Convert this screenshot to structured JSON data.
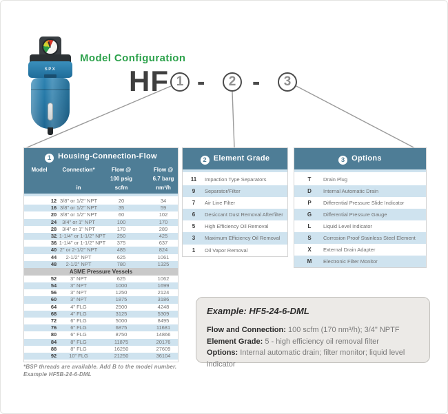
{
  "title": "Model Configuration",
  "product": {
    "brand": "SPX"
  },
  "model_code": {
    "prefix": "HF",
    "part1": "1",
    "sep1": "-",
    "part2": "2",
    "sep2": "-",
    "part3": "3"
  },
  "table1": {
    "badge": "1",
    "title": "Housing-Connection-Flow",
    "columns": {
      "model": "Model",
      "connection": "Connection*",
      "connection_unit": "in",
      "flow1_l1": "Flow @",
      "flow1_l2": "100 psig",
      "flow1_l3": "scfm",
      "flow2_l1": "Flow @",
      "flow2_l2": "6.7 barg",
      "flow2_l3": "nm³/h"
    },
    "standard_rows": [
      [
        "12",
        "3/8\" or 1/2\" NPT",
        "20",
        "34"
      ],
      [
        "16",
        "3/8\" or 1/2\" NPT",
        "35",
        "59"
      ],
      [
        "20",
        "3/8\" or 1/2\" NPT",
        "60",
        "102"
      ],
      [
        "24",
        "3/4\" or 1\" NPT",
        "100",
        "170"
      ],
      [
        "28",
        "3/4\" or 1\" NPT",
        "170",
        "289"
      ],
      [
        "32",
        "1\", 1-1/4\" or 1-1/2\" NPT",
        "250",
        "425"
      ],
      [
        "36",
        "1\", 1-1/4\" or 1-1/2\" NPT",
        "375",
        "637"
      ],
      [
        "40",
        "2\" or 2-1/2\" NPT",
        "485",
        "824"
      ],
      [
        "44",
        "2-1/2\" NPT",
        "625",
        "1061"
      ],
      [
        "48",
        "2-1/2\" NPT",
        "780",
        "1325"
      ]
    ],
    "asme_label": "ASME Pressure Vessels",
    "asme_rows": [
      [
        "52",
        "3\" NPT",
        "625",
        "1062"
      ],
      [
        "54",
        "3\" NPT",
        "1000",
        "1699"
      ],
      [
        "56",
        "3\" NPT",
        "1250",
        "2124"
      ],
      [
        "60",
        "3\" NPT",
        "1875",
        "3186"
      ],
      [
        "64",
        "4\" FLG",
        "2500",
        "4248"
      ],
      [
        "68",
        "4\" FLG",
        "3125",
        "5309"
      ],
      [
        "72",
        "6\" FLG",
        "5000",
        "8495"
      ],
      [
        "76",
        "6\" FLG",
        "6875",
        "11681"
      ],
      [
        "80",
        "6\" FLG",
        "8750",
        "14866"
      ],
      [
        "84",
        "8\" FLG",
        "11875",
        "20176"
      ],
      [
        "88",
        "8\" FLG",
        "16250",
        "27609"
      ],
      [
        "92",
        "10\" FLG",
        "21250",
        "36104"
      ]
    ]
  },
  "element_grade": {
    "badge": "2",
    "title": "Element Grade",
    "rows": [
      [
        "11",
        "Impaction Type Separators"
      ],
      [
        "9",
        "Separator/Filter"
      ],
      [
        "7",
        "Air Line Filter"
      ],
      [
        "6",
        "Desiccant Dust Removal Afterfilter"
      ],
      [
        "5",
        "High Efficiency Oil Removal"
      ],
      [
        "3",
        "Maximum Efficiency Oil Removal"
      ],
      [
        "1",
        "Oil Vapor Removal"
      ]
    ]
  },
  "options": {
    "badge": "3",
    "title": "Options",
    "rows": [
      [
        "T",
        "Drain Plug"
      ],
      [
        "D",
        "Internal Automatic Drain"
      ],
      [
        "P",
        "Differential Pressure Slide Indicator"
      ],
      [
        "G",
        "Differential Pressure Gauge"
      ],
      [
        "L",
        "Liquid Level Indicator"
      ],
      [
        "S",
        "Corrosion Proof Stainless Steel Element"
      ],
      [
        "X",
        "External Drain Adapter"
      ],
      [
        "M",
        "Electronic Filter Monitor"
      ]
    ]
  },
  "example": {
    "title": "Example: HF5-24-6-DML",
    "flow_label": "Flow and Connection:",
    "flow_value": "100 scfm (170 nm³/h); 3/4\" NPTF",
    "grade_label": "Element Grade:",
    "grade_value": "5 - high efficiency oil removal filter",
    "options_label": "Options:",
    "options_value": "Internal automatic drain; filter monitor; liquid level indicator"
  },
  "footnote": {
    "line1": "*BSP threads are available. Add B to the model number.",
    "line2": "Example HF5B-24-6-DML"
  },
  "colors": {
    "header_teal": "#4e7d96",
    "row_blue": "#cfe3ef",
    "asme_gray": "#c9c9c9",
    "accent_green": "#2da24c",
    "product_blue": "#2578a6"
  }
}
